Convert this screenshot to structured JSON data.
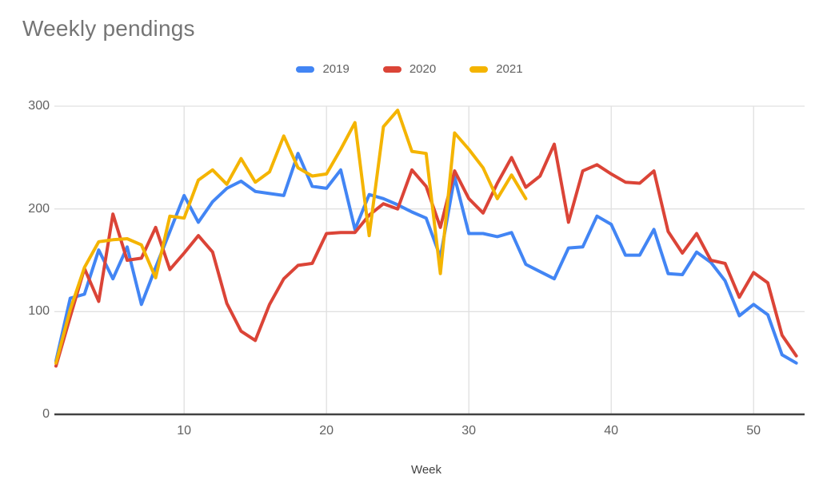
{
  "header": {
    "title": "Weekly pendings"
  },
  "legend": {
    "items": [
      {
        "label": "2019",
        "color": "#4285F4"
      },
      {
        "label": "2020",
        "color": "#DB4437"
      },
      {
        "label": "2021",
        "color": "#F4B400"
      }
    ]
  },
  "axes": {
    "x_label": "Week",
    "x_ticks": [
      10,
      20,
      30,
      40,
      50
    ],
    "y_ticks": [
      0,
      100,
      200,
      300
    ]
  },
  "colors": {
    "grid": "#e0e0e0",
    "axis_line": "#424242",
    "tick_text": "#616161",
    "title_text": "#757575"
  },
  "chart_data": {
    "type": "line",
    "title": "Weekly pendings",
    "xlabel": "Week",
    "ylabel": "",
    "x_range": [
      1,
      53
    ],
    "ylim": [
      0,
      300
    ],
    "grid": true,
    "legend_position": "top-center",
    "x": [
      1,
      2,
      3,
      4,
      5,
      6,
      7,
      8,
      9,
      10,
      11,
      12,
      13,
      14,
      15,
      16,
      17,
      18,
      19,
      20,
      21,
      22,
      23,
      24,
      25,
      26,
      27,
      28,
      29,
      30,
      31,
      32,
      33,
      34,
      35,
      36,
      37,
      38,
      39,
      40,
      41,
      42,
      43,
      44,
      45,
      46,
      47,
      48,
      49,
      50,
      51,
      52,
      53
    ],
    "series": [
      {
        "name": "2019",
        "color": "#4285F4",
        "values": [
          52,
          113,
          117,
          160,
          132,
          163,
          107,
          143,
          178,
          213,
          187,
          207,
          220,
          227,
          217,
          215,
          213,
          254,
          222,
          220,
          238,
          180,
          214,
          210,
          204,
          197,
          191,
          153,
          231,
          176,
          176,
          173,
          177,
          146,
          139,
          132,
          162,
          163,
          193,
          185,
          155,
          155,
          180,
          137,
          136,
          158,
          148,
          130,
          96,
          107,
          97,
          58,
          50
        ]
      },
      {
        "name": "2020",
        "color": "#DB4437",
        "values": [
          47,
          95,
          142,
          110,
          195,
          150,
          152,
          182,
          141,
          157,
          174,
          158,
          108,
          81,
          72,
          107,
          132,
          145,
          147,
          176,
          177,
          177,
          194,
          205,
          200,
          238,
          222,
          182,
          237,
          210,
          196,
          225,
          250,
          221,
          232,
          263,
          187,
          237,
          243,
          234,
          226,
          225,
          237,
          178,
          157,
          176,
          150,
          147,
          114,
          138,
          128,
          77,
          57
        ]
      },
      {
        "name": "2021",
        "color": "#F4B400",
        "values": [
          50,
          102,
          143,
          168,
          170,
          171,
          165,
          133,
          193,
          191,
          228,
          238,
          224,
          249,
          226,
          236,
          271,
          240,
          232,
          234,
          258,
          284,
          174,
          280,
          296,
          256,
          254,
          137,
          274,
          258,
          240,
          210,
          233,
          210
        ]
      }
    ]
  }
}
